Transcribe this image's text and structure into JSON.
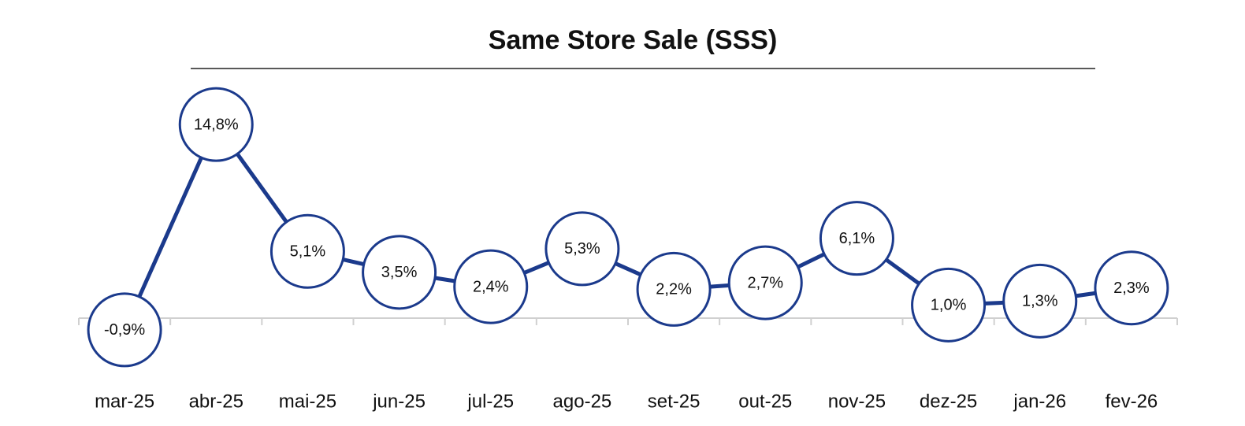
{
  "chart_data": {
    "type": "line",
    "title": "Same Store Sale (SSS)",
    "categories": [
      "mar-25",
      "abr-25",
      "mai-25",
      "jun-25",
      "jul-25",
      "ago-25",
      "set-25",
      "out-25",
      "nov-25",
      "dez-25",
      "jan-26",
      "fev-26"
    ],
    "values": [
      -0.9,
      14.8,
      5.1,
      3.5,
      2.4,
      5.3,
      2.2,
      2.7,
      6.1,
      1.0,
      1.3,
      2.3
    ],
    "value_labels": [
      "-0,9%",
      "14,8%",
      "5,1%",
      "3,5%",
      "2,4%",
      "5,3%",
      "2,2%",
      "2,7%",
      "6,1%",
      "1,0%",
      "1,3%",
      "2,3%"
    ],
    "color": "#1b3a8c",
    "ylim": [
      -4,
      18
    ]
  }
}
